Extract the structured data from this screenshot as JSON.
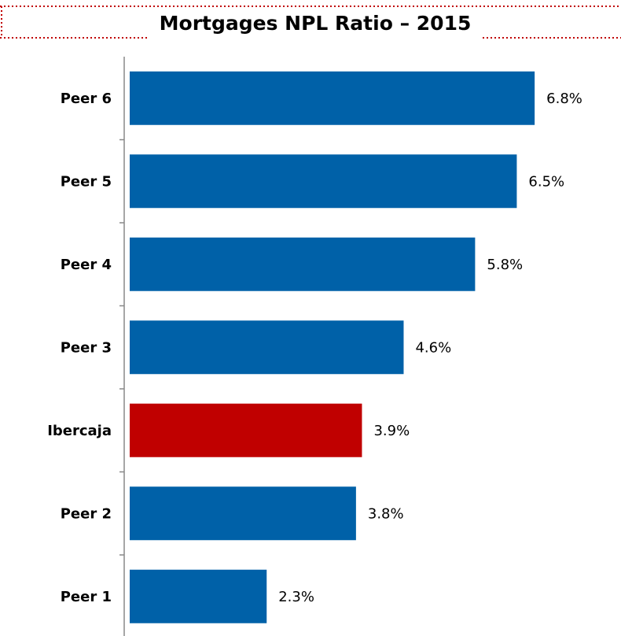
{
  "chart_data": {
    "type": "bar",
    "orientation": "horizontal",
    "title": "Mortgages NPL Ratio – 2015",
    "categories": [
      "Peer 6",
      "Peer 5",
      "Peer 4",
      "Peer 3",
      "Ibercaja",
      "Peer 2",
      "Peer 1"
    ],
    "values": [
      6.8,
      6.5,
      5.8,
      4.6,
      3.9,
      3.8,
      2.3
    ],
    "value_labels": [
      "6.8%",
      "6.5%",
      "5.8%",
      "4.6%",
      "3.9%",
      "3.8%",
      "2.3%"
    ],
    "colors": [
      "#0061a8",
      "#0061a8",
      "#0061a8",
      "#0061a8",
      "#c00000",
      "#0061a8",
      "#0061a8"
    ],
    "xlim": [
      0,
      8.25
    ]
  }
}
